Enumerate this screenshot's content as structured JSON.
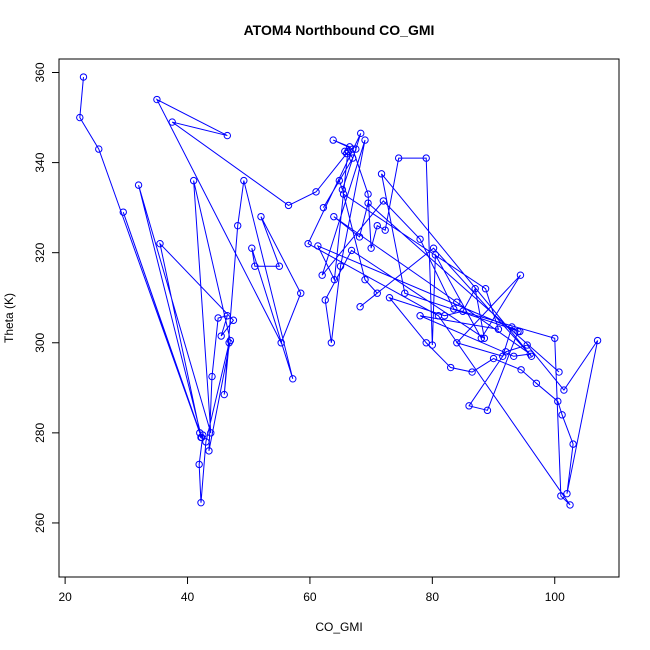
{
  "chart_data": {
    "type": "line",
    "title": "ATOM4 Northbound CO_GMI",
    "xlabel": "CO_GMI",
    "ylabel": "Theta (K)",
    "xlim": [
      19,
      110.5
    ],
    "ylim": [
      248,
      363
    ],
    "xticks": [
      20,
      40,
      60,
      80,
      100
    ],
    "yticks": [
      260,
      280,
      300,
      320,
      340,
      360
    ],
    "grid": false,
    "series": [
      {
        "color": "#0000ff",
        "marker": "open-circle",
        "x": [
          23.0,
          22.4,
          25.5,
          42.0,
          29.5,
          42.3,
          32.0,
          43.8,
          41.0,
          47.0,
          43.5,
          44.0,
          45.0,
          46.5,
          45.5,
          47.5,
          35.5,
          42.2,
          42.5,
          41.9,
          42.2,
          43.0,
          46.8,
          46.0,
          48.2,
          49.2,
          57.2,
          50.5,
          51.0,
          55.0,
          52.0,
          58.5,
          55.3,
          35.0,
          46.5,
          37.5,
          56.5,
          61.0,
          66.0,
          65.7,
          66.5,
          63.8,
          67.0,
          69.5,
          70.0,
          71.0,
          72.3,
          74.5,
          79.0,
          80.0,
          80.5,
          88.0,
          94.4,
          84.0,
          91.5,
          93.0,
          94.0,
          89.0,
          86.0,
          92.0,
          95.5,
          101.5,
          107.0,
          102.0,
          103.0,
          101.2,
          100.5,
          97.0,
          94.5,
          90.0,
          86.5,
          83.0,
          79.0,
          73.0,
          82.0,
          85.0,
          87.0,
          88.5,
          66.8,
          62.5,
          63.5,
          65.0,
          69.0,
          62.0,
          72.0,
          78.0,
          83.5,
          100.0,
          101.0,
          102.5,
          81.0,
          59.7,
          68.3,
          67.5,
          65.3,
          64.8,
          62.2,
          67.0,
          66.2,
          64.0,
          61.3,
          94.3,
          75.5,
          71.7,
          96.2,
          80.2,
          68.2,
          71.0,
          69.0,
          65.5,
          88.7,
          90.8,
          78.0,
          93.3,
          96.0,
          84.0,
          63.9,
          68.1,
          69.5,
          100.7
        ],
        "y": [
          359.0,
          350.0,
          343.0,
          280.0,
          329.0,
          279.0,
          335.0,
          280.0,
          336.0,
          300.5,
          276.0,
          292.5,
          305.5,
          306.0,
          301.5,
          305.0,
          322.0,
          279.0,
          279.5,
          273.0,
          264.5,
          278.0,
          300.0,
          288.5,
          326.0,
          336.0,
          292.0,
          321.0,
          317.0,
          317.0,
          328.0,
          311.0,
          300.0,
          354.0,
          346.0,
          349.0,
          330.5,
          333.5,
          342.0,
          342.5,
          343.5,
          345.0,
          343.0,
          333.0,
          321.0,
          326.0,
          325.0,
          341.0,
          341.0,
          299.5,
          319.5,
          301.0,
          315.0,
          300.0,
          297.0,
          303.5,
          302.5,
          285.0,
          286.0,
          298.0,
          299.5,
          289.5,
          300.5,
          266.5,
          277.5,
          284.0,
          287.0,
          291.0,
          294.0,
          296.5,
          293.5,
          294.5,
          300.0,
          310.0,
          306.0,
          307.0,
          312.0,
          301.0,
          320.5,
          309.5,
          300.0,
          317.0,
          345.0,
          315.0,
          331.5,
          323.0,
          307.5,
          301.0,
          266.0,
          264.0,
          306.0,
          322.0,
          346.5,
          343.0,
          334.0,
          336.0,
          330.0,
          341.0,
          342.5,
          314.0,
          321.5,
          302.5,
          311.0,
          337.5,
          297.0,
          321.0,
          308.0,
          311.0,
          314.0,
          333.0,
          312.0,
          303.0,
          306.0,
          297.0,
          297.5,
          309.0,
          328.0,
          323.5,
          331.0,
          293.5
        ]
      }
    ]
  }
}
